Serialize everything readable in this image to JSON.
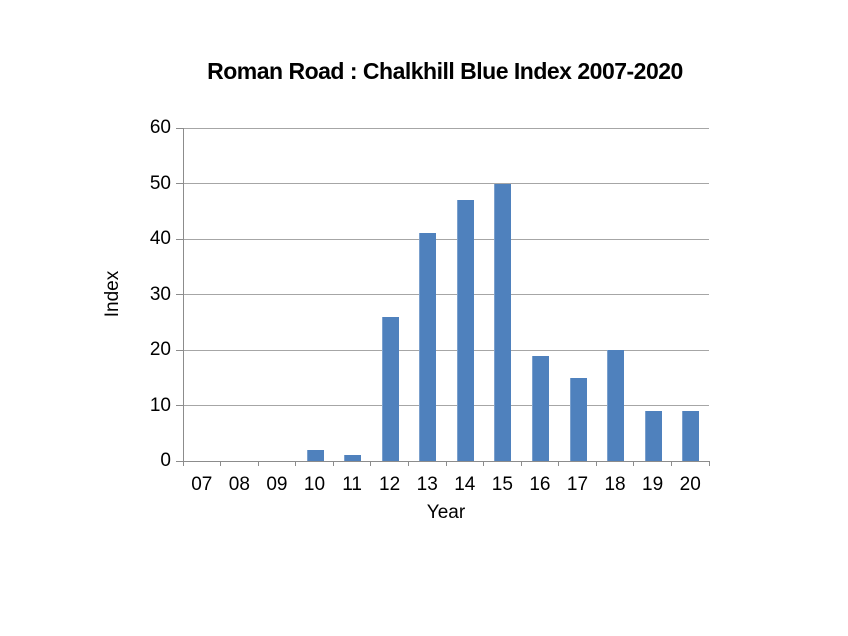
{
  "chart_data": {
    "type": "bar",
    "title": "Roman Road : Chalkhill Blue Index 2007-2020",
    "categories": [
      "07",
      "08",
      "09",
      "10",
      "11",
      "12",
      "13",
      "14",
      "15",
      "16",
      "17",
      "18",
      "19",
      "20"
    ],
    "values": [
      0,
      0,
      0,
      2,
      1,
      26,
      41,
      47,
      50,
      19,
      15,
      20,
      9,
      9
    ],
    "xlabel": "Year",
    "ylabel": "Index",
    "ylim": [
      0,
      60
    ],
    "yticks": [
      0,
      10,
      20,
      30,
      40,
      50,
      60
    ],
    "grid": true,
    "legend": "none",
    "colors": {
      "bar_fill": "#4F81BD",
      "bar_edge": "#7BA0CD",
      "gridline": "#A6A6A6",
      "axis": "#8C8C8C",
      "text": "#000000",
      "background": "#FFFFFF"
    }
  }
}
